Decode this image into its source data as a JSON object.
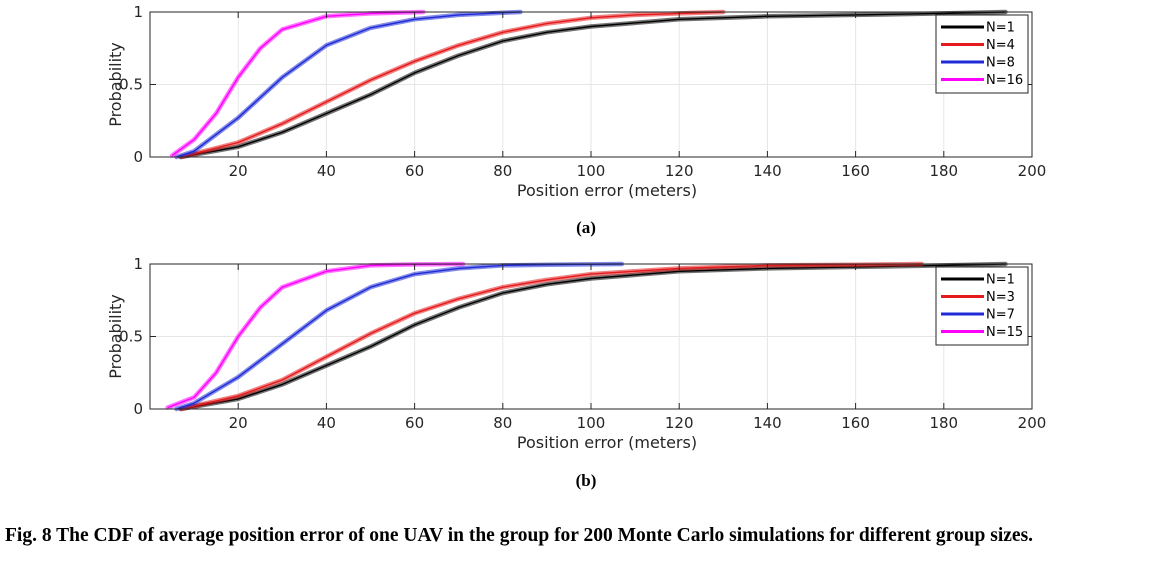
{
  "caption": "Fig. 8    The CDF of average position error of one UAV in the group for 200 Monte Carlo simulations for different group sizes.",
  "colors": {
    "N1": "#000000",
    "red": "#e41a1c",
    "blue": "#1f2bd6",
    "magenta": "#ff00ff"
  },
  "chart_data": [
    {
      "type": "line",
      "panel_label": "(a)",
      "xlabel": "Position error (meters)",
      "ylabel": "Probability",
      "xlim": [
        0,
        200
      ],
      "ylim": [
        0,
        1
      ],
      "xticks": [
        20,
        40,
        60,
        80,
        100,
        120,
        140,
        160,
        180,
        200
      ],
      "yticks": [
        0,
        0.5,
        1
      ],
      "grid": true,
      "legend_position": "top-right",
      "series": [
        {
          "name": "N=1",
          "color": "#000000",
          "x": [
            7,
            20,
            30,
            40,
            50,
            60,
            70,
            80,
            90,
            100,
            120,
            140,
            160,
            180,
            194
          ],
          "y": [
            0,
            0.07,
            0.17,
            0.3,
            0.43,
            0.58,
            0.7,
            0.8,
            0.86,
            0.9,
            0.95,
            0.97,
            0.98,
            0.99,
            1
          ]
        },
        {
          "name": "N=4",
          "color": "#e41a1c",
          "x": [
            7,
            20,
            30,
            40,
            50,
            60,
            70,
            80,
            90,
            100,
            110,
            120,
            130
          ],
          "y": [
            0,
            0.1,
            0.23,
            0.38,
            0.53,
            0.66,
            0.77,
            0.86,
            0.92,
            0.96,
            0.98,
            0.99,
            1
          ]
        },
        {
          "name": "N=8",
          "color": "#1f2bd6",
          "x": [
            6,
            10,
            20,
            30,
            40,
            50,
            60,
            70,
            80,
            84
          ],
          "y": [
            0,
            0.04,
            0.27,
            0.55,
            0.77,
            0.89,
            0.95,
            0.98,
            0.995,
            1
          ]
        },
        {
          "name": "N=16",
          "color": "#ff00ff",
          "x": [
            5,
            10,
            15,
            20,
            25,
            30,
            40,
            50,
            62
          ],
          "y": [
            0.01,
            0.12,
            0.3,
            0.55,
            0.75,
            0.88,
            0.97,
            0.99,
            1
          ]
        }
      ]
    },
    {
      "type": "line",
      "panel_label": "(b)",
      "xlabel": "Position error (meters)",
      "ylabel": "Probability",
      "xlim": [
        0,
        200
      ],
      "ylim": [
        0,
        1
      ],
      "xticks": [
        20,
        40,
        60,
        80,
        100,
        120,
        140,
        160,
        180,
        200
      ],
      "yticks": [
        0,
        0.5,
        1
      ],
      "grid": true,
      "legend_position": "top-right",
      "series": [
        {
          "name": "N=1",
          "color": "#000000",
          "x": [
            7,
            20,
            30,
            40,
            50,
            60,
            70,
            80,
            90,
            100,
            120,
            140,
            160,
            180,
            194
          ],
          "y": [
            0,
            0.07,
            0.17,
            0.3,
            0.43,
            0.58,
            0.7,
            0.8,
            0.86,
            0.9,
            0.95,
            0.97,
            0.98,
            0.99,
            1
          ]
        },
        {
          "name": "N=3",
          "color": "#e41a1c",
          "x": [
            7,
            20,
            30,
            40,
            50,
            60,
            70,
            80,
            90,
            100,
            120,
            140,
            160,
            175
          ],
          "y": [
            0,
            0.09,
            0.2,
            0.36,
            0.52,
            0.66,
            0.76,
            0.84,
            0.89,
            0.93,
            0.97,
            0.99,
            0.995,
            1
          ]
        },
        {
          "name": "N=7",
          "color": "#1f2bd6",
          "x": [
            6,
            10,
            20,
            30,
            40,
            50,
            60,
            70,
            80,
            90,
            107
          ],
          "y": [
            0,
            0.04,
            0.22,
            0.45,
            0.68,
            0.84,
            0.93,
            0.97,
            0.99,
            0.995,
            1
          ]
        },
        {
          "name": "N=15",
          "color": "#ff00ff",
          "x": [
            4,
            10,
            15,
            20,
            25,
            30,
            40,
            50,
            60,
            71
          ],
          "y": [
            0.01,
            0.08,
            0.25,
            0.5,
            0.7,
            0.84,
            0.95,
            0.99,
            0.997,
            1
          ]
        }
      ]
    }
  ]
}
